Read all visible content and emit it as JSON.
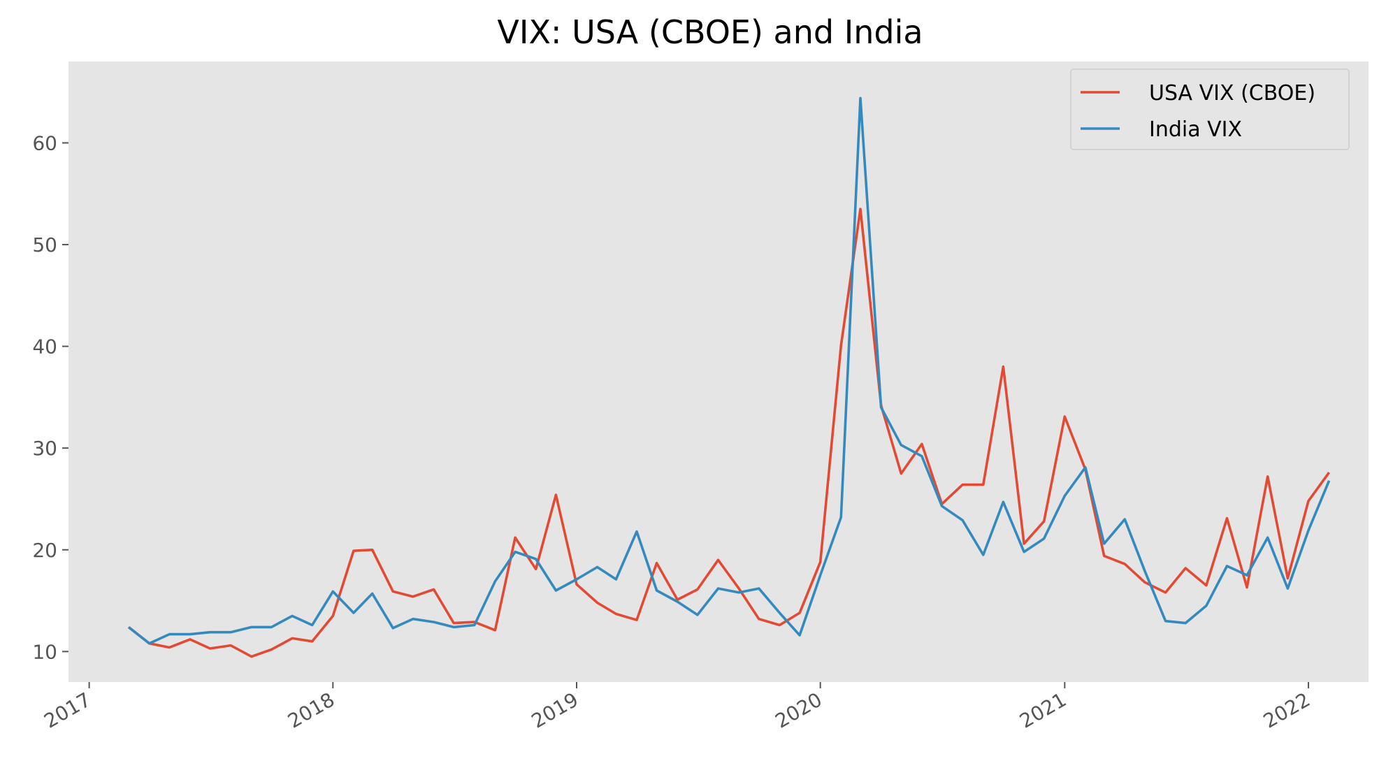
{
  "chart_data": {
    "type": "line",
    "title": "VIX: USA (CBOE) and India",
    "xlabel": "",
    "ylabel": "",
    "xlim": [
      "2016-12-01",
      "2022-04-01"
    ],
    "ylim": [
      7,
      68
    ],
    "grid": false,
    "legend_position": "top-right",
    "background_color": "#e5e5e5",
    "x_ticks": [
      {
        "date": "2017-01-01",
        "label": "2017"
      },
      {
        "date": "2018-01-01",
        "label": "2018"
      },
      {
        "date": "2019-01-01",
        "label": "2019"
      },
      {
        "date": "2020-01-01",
        "label": "2020"
      },
      {
        "date": "2021-01-01",
        "label": "2021"
      },
      {
        "date": "2022-01-01",
        "label": "2022"
      }
    ],
    "y_ticks": [
      10,
      20,
      30,
      40,
      50,
      60
    ],
    "x": [
      "2017-03-01",
      "2017-04-01",
      "2017-05-01",
      "2017-06-01",
      "2017-07-01",
      "2017-08-01",
      "2017-09-01",
      "2017-10-01",
      "2017-11-01",
      "2017-12-01",
      "2018-01-01",
      "2018-02-01",
      "2018-03-01",
      "2018-04-01",
      "2018-05-01",
      "2018-06-01",
      "2018-07-01",
      "2018-08-01",
      "2018-09-01",
      "2018-10-01",
      "2018-11-01",
      "2018-12-01",
      "2019-01-01",
      "2019-02-01",
      "2019-03-01",
      "2019-04-01",
      "2019-05-01",
      "2019-06-01",
      "2019-07-01",
      "2019-08-01",
      "2019-09-01",
      "2019-10-01",
      "2019-11-01",
      "2019-12-01",
      "2020-01-01",
      "2020-02-01",
      "2020-03-01",
      "2020-04-01",
      "2020-05-01",
      "2020-06-01",
      "2020-07-01",
      "2020-08-01",
      "2020-09-01",
      "2020-10-01",
      "2020-11-01",
      "2020-12-01",
      "2021-01-01",
      "2021-02-01",
      "2021-03-01",
      "2021-04-01",
      "2021-05-01",
      "2021-06-01",
      "2021-07-01",
      "2021-08-01",
      "2021-09-01",
      "2021-10-01",
      "2021-11-01",
      "2021-12-01",
      "2022-01-01",
      "2022-02-01"
    ],
    "series": [
      {
        "name": "USA VIX (CBOE)",
        "color": "#e24a33",
        "values": [
          12.4,
          10.8,
          10.4,
          11.2,
          10.3,
          10.6,
          9.5,
          10.2,
          11.3,
          11.0,
          13.5,
          19.9,
          20.0,
          15.9,
          15.4,
          16.1,
          12.8,
          12.9,
          12.1,
          21.2,
          18.1,
          25.4,
          16.6,
          14.8,
          13.7,
          13.1,
          18.7,
          15.1,
          16.1,
          19.0,
          16.2,
          13.2,
          12.6,
          13.8,
          18.8,
          40.1,
          53.5,
          34.2,
          27.5,
          30.4,
          24.5,
          26.4,
          26.4,
          38.0,
          20.6,
          22.8,
          33.1,
          27.9,
          19.4,
          18.6,
          16.8,
          15.8,
          18.2,
          16.5,
          23.1,
          16.3,
          27.2,
          17.2,
          24.8,
          27.6
        ]
      },
      {
        "name": "India VIX",
        "color": "#348abd",
        "values": [
          12.4,
          10.8,
          11.7,
          11.7,
          11.9,
          11.9,
          12.4,
          12.4,
          13.5,
          12.6,
          15.9,
          13.8,
          15.7,
          12.3,
          13.2,
          12.9,
          12.4,
          12.6,
          16.9,
          19.8,
          19.1,
          16.0,
          17.1,
          18.3,
          17.1,
          21.8,
          16.0,
          14.9,
          13.6,
          16.2,
          15.8,
          16.2,
          13.8,
          11.6,
          17.5,
          23.2,
          64.4,
          34.0,
          30.3,
          29.2,
          24.3,
          22.9,
          19.5,
          24.7,
          19.8,
          21.1,
          25.3,
          28.1,
          20.6,
          23.0,
          17.9,
          13.0,
          12.8,
          14.5,
          18.4,
          17.5,
          21.2,
          16.2,
          21.9,
          26.8
        ]
      }
    ]
  }
}
